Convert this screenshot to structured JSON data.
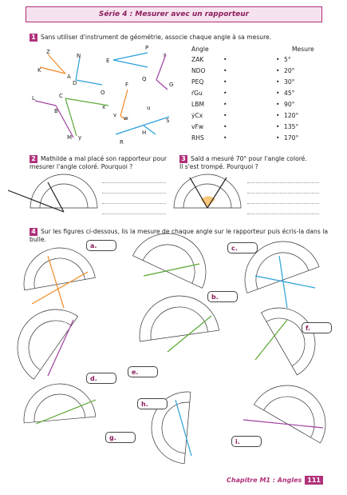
{
  "header": {
    "title": "Série 4 : Mesurer avec un rapporteur"
  },
  "ex1": {
    "number": "1",
    "text": "Sans utiliser d'instrument de géométrie, associe chaque angle à sa mesure.",
    "col_angle": "Angle",
    "col_mesure": "Mesure",
    "angles": [
      "ZAK",
      "NDO",
      "PEQ",
      "ŕGu",
      "LBM",
      "ẏCx",
      "vFw",
      "RHS"
    ],
    "mesures": [
      "5°",
      "20°",
      "30°",
      "45°",
      "90°",
      "120°",
      "135°",
      "170°"
    ],
    "bullet": "•",
    "point_labels": [
      "Z",
      "N",
      "P",
      "r",
      "E",
      "K",
      "A",
      "D",
      "Q",
      "G",
      "L",
      "C",
      "F",
      "O",
      "B",
      "x",
      "u",
      "v",
      "w",
      "S",
      "M",
      "y",
      "H",
      "R"
    ]
  },
  "ex2": {
    "number": "2",
    "text1": "Mathilde a mal placé son rapporteur pour",
    "text2": "mesurer l'angle coloré. Pourquoi ?"
  },
  "ex3": {
    "number": "3",
    "text1": "Saïd a mesuré 70° pour l'angle coloré.",
    "text2": "Il s'est trompé. Pourquoi ?"
  },
  "ex4": {
    "number": "4",
    "text": "Sur les figures ci-dessous, lis la mesure de chaque angle sur le rapporteur puis écris-la dans la bulle.",
    "bubbles": [
      "a.",
      "b.",
      "c.",
      "d.",
      "e.",
      "f.",
      "g.",
      "h.",
      "i."
    ]
  },
  "footer": {
    "chapter": "Chapitre M1 : Angles",
    "page": "111"
  },
  "colors": {
    "accent": "#b0307a",
    "orange": "#f08a24",
    "blue": "#2aa0d8",
    "green": "#5aa832",
    "purple": "#a040a0"
  }
}
